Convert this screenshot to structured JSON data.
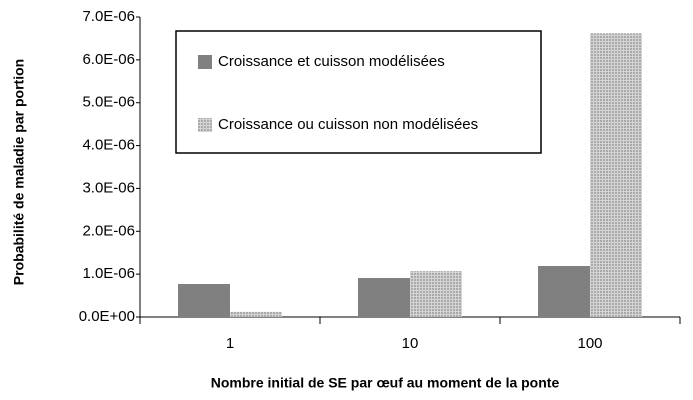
{
  "chart_data": {
    "type": "bar",
    "y_label": "Probabilité de maladie par portion",
    "x_label": "Nombre initial de SE par œuf au moment de la ponte",
    "categories": [
      "1",
      "10",
      "100"
    ],
    "series": [
      {
        "name": "Croissance et cuisson modélisées",
        "color": "#808080",
        "values": [
          7.7e-07,
          9.1e-07,
          1.19e-06
        ]
      },
      {
        "name": "Croissance ou cuisson non modélisées",
        "color": "#d4d4d4",
        "values": [
          1.2e-07,
          1.07e-06,
          6.62e-06
        ]
      }
    ],
    "ylim": [
      0,
      7e-06
    ],
    "yticks": [
      {
        "value": 0,
        "label": "0.0E+00"
      },
      {
        "value": 1e-06,
        "label": "1.0E-06"
      },
      {
        "value": 2e-06,
        "label": "2.0E-06"
      },
      {
        "value": 3e-06,
        "label": "3.0E-06"
      },
      {
        "value": 4e-06,
        "label": "4.0E-06"
      },
      {
        "value": 5e-06,
        "label": "5.0E-06"
      },
      {
        "value": 6e-06,
        "label": "6.0E-06"
      },
      {
        "value": 7e-06,
        "label": "7.0E-06"
      }
    ],
    "grid": false
  }
}
